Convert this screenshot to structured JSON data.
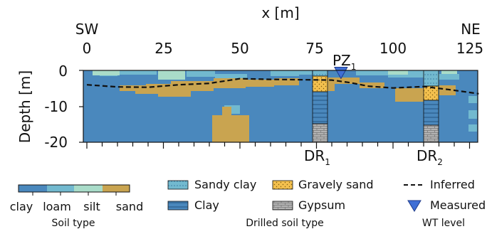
{
  "section": {
    "x_axis_title": "x [m]",
    "left_label": "SW",
    "right_label": "NE",
    "x_ticks": [
      "0",
      "25",
      "50",
      "75",
      "100",
      "125"
    ],
    "y_axis_title": "Depth [m]",
    "y_ticks": [
      "0",
      "-10",
      "-20"
    ],
    "piezometer": {
      "label": "PZ",
      "subscript": "1"
    },
    "boreholes": [
      {
        "label": "DR",
        "subscript": "1"
      },
      {
        "label": "DR",
        "subscript": "2"
      }
    ],
    "x_range_m": [
      -1,
      129
    ],
    "depth_range_m": [
      -20,
      0.5
    ]
  },
  "chart_data": {
    "type": "section",
    "x_label": "x [m]",
    "y_label": "Depth [m]",
    "x_ticks": [
      0,
      25,
      50,
      75,
      100,
      125
    ],
    "y_ticks": [
      0,
      -10,
      -20
    ],
    "water_table_inferred": [
      {
        "x": 0,
        "depth": -4.0
      },
      {
        "x": 10,
        "depth": -4.6
      },
      {
        "x": 20,
        "depth": -4.7
      },
      {
        "x": 30,
        "depth": -4.0
      },
      {
        "x": 40,
        "depth": -3.6
      },
      {
        "x": 50,
        "depth": -2.3
      },
      {
        "x": 60,
        "depth": -2.5
      },
      {
        "x": 70,
        "depth": -2.6
      },
      {
        "x": 80,
        "depth": -2.7
      },
      {
        "x": 86,
        "depth": -3.4
      },
      {
        "x": 92,
        "depth": -4.4
      },
      {
        "x": 100,
        "depth": -4.9
      },
      {
        "x": 110,
        "depth": -4.5
      },
      {
        "x": 118,
        "depth": -5.3
      },
      {
        "x": 128,
        "depth": -6.5
      }
    ],
    "water_table_measured": {
      "x": 83,
      "depth": -0.3
    }
  },
  "colors": {
    "clay": "#4a88bd",
    "loam": "#72b9cf",
    "silt": "#a9dcc9",
    "sand": "#c9a450",
    "gravel": "#f3c04e",
    "gypsum": "#b3b3b3",
    "measured": "#3f6fd6"
  },
  "legends": {
    "soil_type": {
      "title": "Soil type",
      "labels": [
        "clay",
        "loam",
        "silt",
        "sand"
      ]
    },
    "drilled": {
      "title": "Drilled soil type",
      "items": [
        "Sandy clay",
        "Clay",
        "Gravely sand",
        "Gypsum"
      ]
    },
    "wt": {
      "title": "WT level",
      "items": [
        "Inferred",
        "Measured"
      ]
    }
  }
}
